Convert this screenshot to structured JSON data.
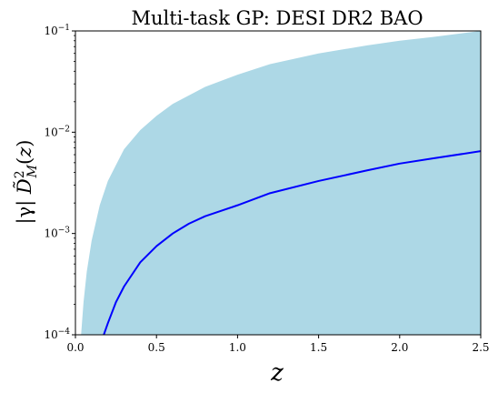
{
  "chart_data": {
    "type": "area",
    "title": "Multi-task GP: DESI DR2 BAO",
    "xlabel": "z",
    "ylabel": "|γ| D̃²_M(z)",
    "xlim": [
      0,
      2.5
    ],
    "ylim": [
      0.0001,
      0.1
    ],
    "yscale": "log",
    "grid": false,
    "x_ticks": [
      0.0,
      0.5,
      1.0,
      1.5,
      2.0,
      2.5
    ],
    "x_tick_labels": [
      "0.0",
      "0.5",
      "1.0",
      "1.5",
      "2.0",
      "2.5"
    ],
    "y_ticks": [
      0.0001,
      0.001,
      0.01,
      0.1
    ],
    "y_tick_labels": [
      {
        "base": "10",
        "exp": "−4"
      },
      {
        "base": "10",
        "exp": "−3"
      },
      {
        "base": "10",
        "exp": "−2"
      },
      {
        "base": "10",
        "exp": "−1"
      }
    ],
    "series": [
      {
        "kind": "band",
        "color": "#add8e6",
        "x": [
          0.035,
          0.05,
          0.07,
          0.1,
          0.15,
          0.2,
          0.3,
          0.4,
          0.5,
          0.6,
          0.8,
          1.0,
          1.2,
          1.5,
          1.8,
          2.0,
          2.2,
          2.5
        ],
        "upper": [
          0.0001,
          0.00021,
          0.00042,
          0.00085,
          0.0019,
          0.0033,
          0.0068,
          0.0105,
          0.0145,
          0.019,
          0.028,
          0.037,
          0.047,
          0.06,
          0.072,
          0.08,
          0.087,
          0.1
        ],
        "lower": [
          0.0001,
          0.0001,
          0.0001,
          0.0001,
          0.0001,
          0.0001,
          0.0001,
          0.0001,
          0.0001,
          0.0001,
          0.0001,
          0.0001,
          0.0001,
          0.0001,
          0.0001,
          0.0001,
          0.0001,
          0.0001
        ]
      },
      {
        "kind": "line",
        "color": "#0000ff",
        "x": [
          0.175,
          0.2,
          0.25,
          0.3,
          0.4,
          0.5,
          0.6,
          0.7,
          0.8,
          1.0,
          1.2,
          1.5,
          1.8,
          2.0,
          2.2,
          2.5
        ],
        "values": [
          0.0001,
          0.00013,
          0.00021,
          0.0003,
          0.00052,
          0.00075,
          0.001,
          0.00125,
          0.00148,
          0.0019,
          0.0025,
          0.0033,
          0.0042,
          0.0049,
          0.0055,
          0.0065
        ]
      }
    ]
  }
}
